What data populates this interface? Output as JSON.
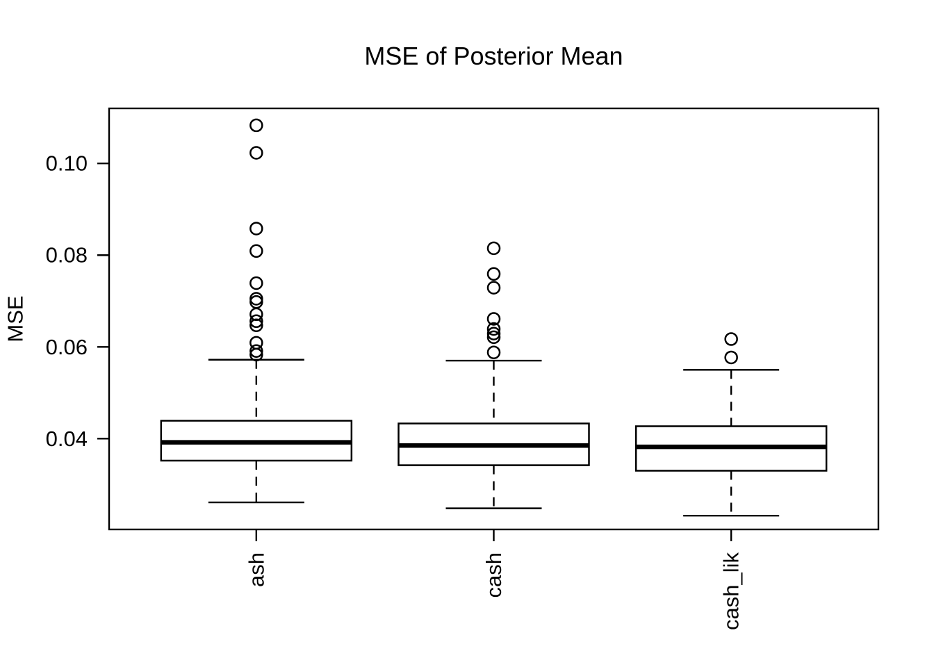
{
  "figure": {
    "background_color": "#ffffff",
    "foreground_color": "#000000"
  },
  "chart_data": {
    "type": "boxplot",
    "title": "MSE of Posterior Mean",
    "ylabel": "MSE",
    "xlabel": "",
    "categories": [
      "ash",
      "cash",
      "cash_lik"
    ],
    "y_tick_labels": [
      "0.04",
      "0.06",
      "0.08",
      "0.10"
    ],
    "y_tick_values": [
      0.04,
      0.06,
      0.08,
      0.1
    ],
    "ylim": [
      0.0202,
      0.112
    ],
    "grid": false,
    "legend": "none",
    "box_style": {
      "fill": "#ffffff",
      "stroke": "#000000",
      "whisker_line": "dashed",
      "outlier_marker": "open-circle"
    },
    "series": [
      {
        "name": "ash",
        "whisker_low": 0.0261,
        "q1": 0.0352,
        "median": 0.0392,
        "q3": 0.0439,
        "whisker_high": 0.0572,
        "outliers": [
          0.0583,
          0.0591,
          0.0609,
          0.0647,
          0.0656,
          0.0671,
          0.0698,
          0.0705,
          0.0739,
          0.0809,
          0.0858,
          0.1023,
          0.1083
        ]
      },
      {
        "name": "cash",
        "whisker_low": 0.0248,
        "q1": 0.0342,
        "median": 0.0385,
        "q3": 0.0433,
        "whisker_high": 0.057,
        "outliers": [
          0.0588,
          0.0621,
          0.0629,
          0.0639,
          0.0661,
          0.0729,
          0.0759,
          0.0815
        ]
      },
      {
        "name": "cash_lik",
        "whisker_low": 0.0232,
        "q1": 0.033,
        "median": 0.0382,
        "q3": 0.0427,
        "whisker_high": 0.055,
        "outliers": [
          0.0577,
          0.0617
        ]
      }
    ]
  }
}
